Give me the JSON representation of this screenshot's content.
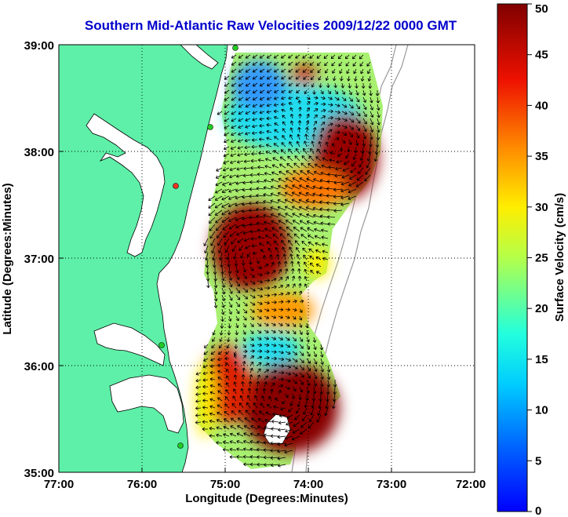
{
  "chart_data": {
    "type": "map",
    "title": "Southern Mid-Atlantic Raw Velocities 2009/12/22 0000 GMT",
    "xlabel": "Longitude (Degrees:Minutes)",
    "ylabel": "Latitude (Degrees:Minutes)",
    "x_ticks": [
      "77:00",
      "76:00",
      "75:00",
      "74:00",
      "73:00",
      "72:00"
    ],
    "y_ticks": [
      "39:00",
      "38:00",
      "37:00",
      "36:00",
      "35:00"
    ],
    "xlim": [
      -77,
      -72
    ],
    "ylim": [
      35,
      39
    ],
    "grid": true,
    "colorbar": {
      "label": "Surface Velocity (cm/s)",
      "ticks": [
        "0",
        "5",
        "10",
        "15",
        "20",
        "25",
        "30",
        "35",
        "40",
        "45",
        "50"
      ],
      "range": [
        0,
        50
      ],
      "colormap": "jet"
    },
    "colors": {
      "land": "#5ef0a8",
      "title": "#0000cc",
      "site_marker": "#22cc22",
      "site_marker_off": "#ee3322",
      "bathymetry": "#999999"
    }
  }
}
